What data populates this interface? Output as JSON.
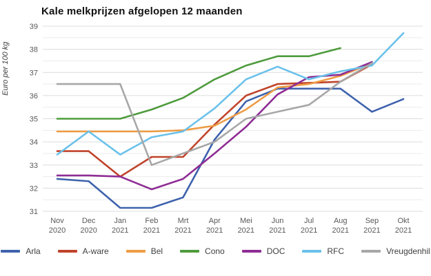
{
  "chart_data": {
    "type": "line",
    "title": "Kale melkprijzen afgelopen 12 maanden",
    "ylabel": "Euro per 100 kg",
    "ylim": [
      31,
      39
    ],
    "ytick_step": 1,
    "yminor_step": 0.5,
    "grid": true,
    "legend_position": "bottom",
    "categories": [
      {
        "month": "Nov",
        "year": "2020"
      },
      {
        "month": "Dec",
        "year": "2020"
      },
      {
        "month": "Jan",
        "year": "2021"
      },
      {
        "month": "Feb",
        "year": "2021"
      },
      {
        "month": "Mrt",
        "year": "2021"
      },
      {
        "month": "Apr",
        "year": "2021"
      },
      {
        "month": "Mei",
        "year": "2021"
      },
      {
        "month": "Jun",
        "year": "2021"
      },
      {
        "month": "Jul",
        "year": "2021"
      },
      {
        "month": "Aug",
        "year": "2021"
      },
      {
        "month": "Sep",
        "year": "2021"
      },
      {
        "month": "Okt",
        "year": "2021"
      }
    ],
    "series": [
      {
        "name": "Arla",
        "color": "#3E62AD",
        "values": [
          32.4,
          32.3,
          31.15,
          31.15,
          31.6,
          34.1,
          35.75,
          36.3,
          36.3,
          36.3,
          35.3,
          35.85
        ]
      },
      {
        "name": "A-ware",
        "color": "#C0432B",
        "values": [
          33.6,
          33.6,
          32.5,
          33.35,
          33.35,
          34.75,
          36.0,
          36.5,
          36.55,
          36.6,
          37.35,
          null
        ]
      },
      {
        "name": "Bel",
        "color": "#EE9C45",
        "values": [
          34.45,
          34.45,
          34.45,
          34.45,
          34.5,
          34.7,
          35.4,
          36.35,
          36.5,
          36.85,
          37.4,
          null
        ]
      },
      {
        "name": "Cono",
        "color": "#4E9B3D",
        "values": [
          35.0,
          35.0,
          35.0,
          35.4,
          35.9,
          36.7,
          37.3,
          37.7,
          37.7,
          38.05,
          null,
          null
        ]
      },
      {
        "name": "DOC",
        "color": "#8E2D94",
        "values": [
          32.55,
          32.55,
          32.5,
          31.95,
          32.4,
          33.5,
          34.65,
          36.05,
          36.8,
          36.9,
          37.45,
          null
        ]
      },
      {
        "name": "RFC",
        "color": "#6AC1EA",
        "values": [
          33.45,
          34.45,
          33.45,
          34.2,
          34.45,
          35.45,
          36.7,
          37.25,
          36.7,
          37.05,
          37.3,
          38.7
        ]
      },
      {
        "name": "Vreugdenhil",
        "color": "#A7A7A7",
        "values": [
          36.5,
          36.5,
          36.5,
          33.0,
          33.5,
          34.0,
          35.0,
          35.3,
          35.6,
          36.6,
          37.4,
          null
        ]
      }
    ],
    "gridline_color_major": "#DCDCDC",
    "gridline_color_minor": "#ECECEC"
  }
}
